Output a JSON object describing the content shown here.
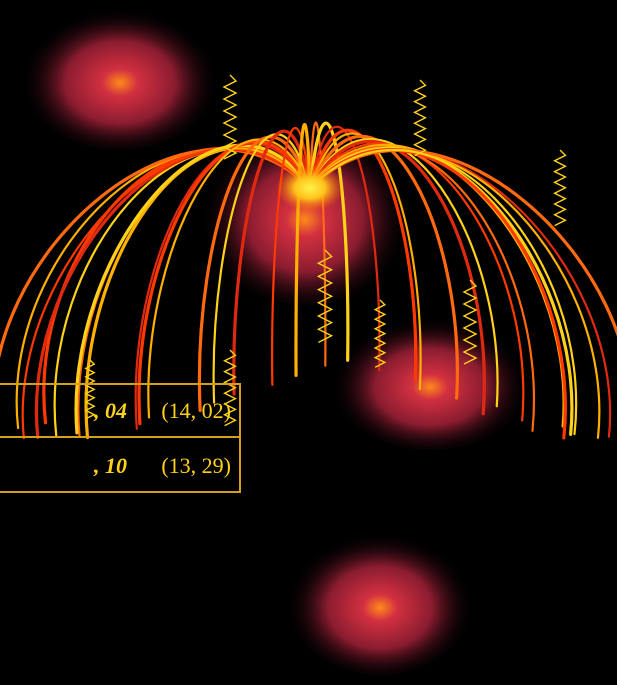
{
  "slide": {
    "background_color": "#000000",
    "accent_color": "#ffd21a",
    "border_color": "#d4a017",
    "artwork": "fireworks-clipart"
  },
  "table": {
    "rows": [
      {
        "bold_value": ", 04",
        "plain_value": "(14, 02)"
      },
      {
        "bold_value": ", 10",
        "plain_value": "(13, 29)"
      }
    ]
  }
}
